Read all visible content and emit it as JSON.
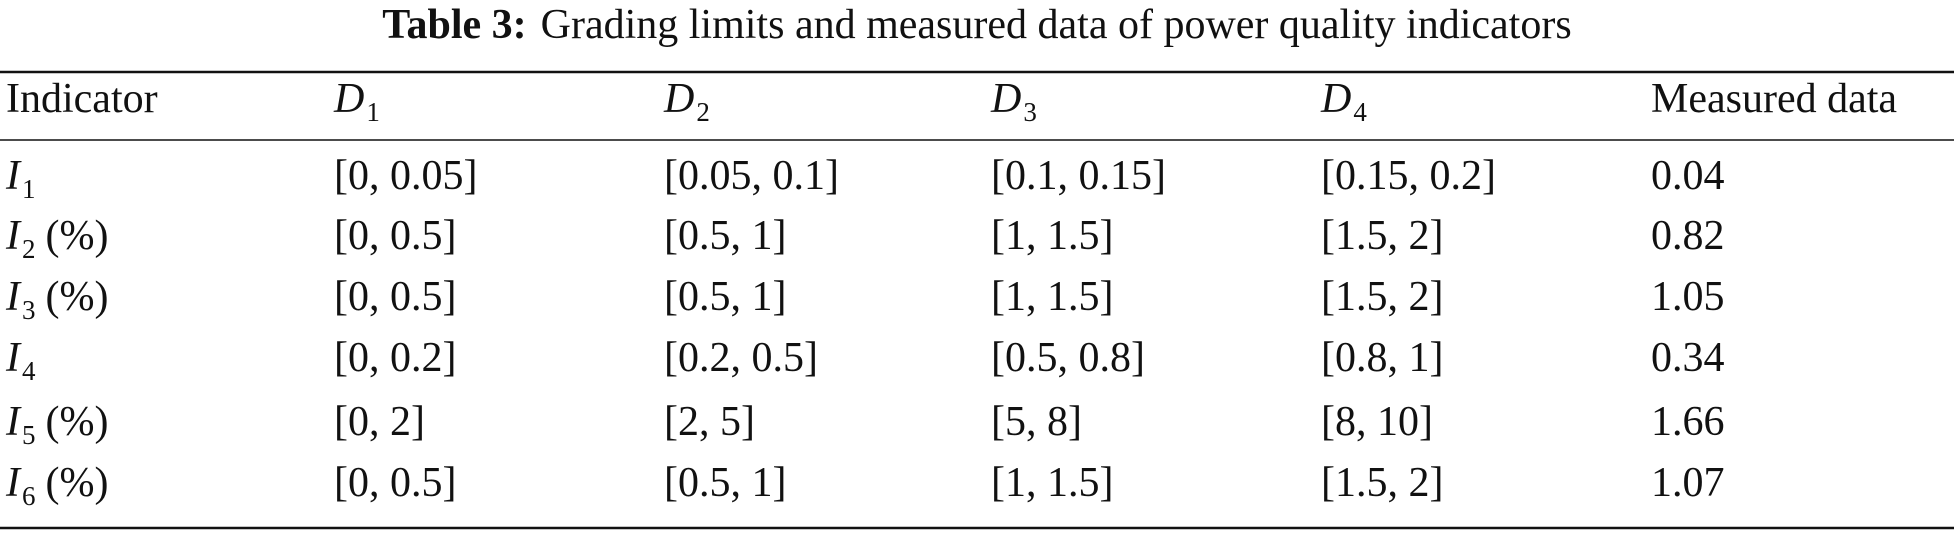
{
  "table": {
    "caption": {
      "label": "Table 3:",
      "text": "Grading limits and measured data of power quality indicators"
    },
    "header": [
      {
        "text": "Indicator"
      },
      {
        "symbol": "D",
        "sub": "1"
      },
      {
        "symbol": "D",
        "sub": "2"
      },
      {
        "symbol": "D",
        "sub": "3"
      },
      {
        "symbol": "D",
        "sub": "4"
      },
      {
        "text": "Measured data"
      }
    ],
    "rows": [
      {
        "indicator": {
          "symbol": "I",
          "sub": "1"
        },
        "cells": [
          "[0, 0.05]",
          "[0.05, 0.1]",
          "[0.1, 0.15]",
          "[0.15, 0.2]",
          "0.04"
        ]
      },
      {
        "indicator": {
          "symbol": "I",
          "sub": "2",
          "unit": "(%)"
        },
        "cells": [
          "[0, 0.5]",
          "[0.5, 1]",
          "[1, 1.5]",
          "[1.5, 2]",
          "0.82"
        ]
      },
      {
        "indicator": {
          "symbol": "I",
          "sub": "3",
          "unit": "(%)"
        },
        "cells": [
          "[0, 0.5]",
          "[0.5, 1]",
          "[1, 1.5]",
          "[1.5, 2]",
          "1.05"
        ]
      },
      {
        "indicator": {
          "symbol": "I",
          "sub": "4"
        },
        "cells": [
          "[0, 0.2]",
          "[0.2, 0.5]",
          "[0.5, 0.8]",
          "[0.8, 1]",
          "0.34"
        ]
      },
      {
        "indicator": {
          "symbol": "I",
          "sub": "5",
          "unit": "(%)"
        },
        "cells": [
          "[0, 2]",
          "[2, 5]",
          "[5, 8]",
          "[8, 10]",
          "1.66"
        ]
      },
      {
        "indicator": {
          "symbol": "I",
          "sub": "6",
          "unit": "(%)"
        },
        "cells": [
          "[0, 0.5]",
          "[0.5, 1]",
          "[1, 1.5]",
          "[1.5, 2]",
          "1.07"
        ]
      }
    ]
  }
}
